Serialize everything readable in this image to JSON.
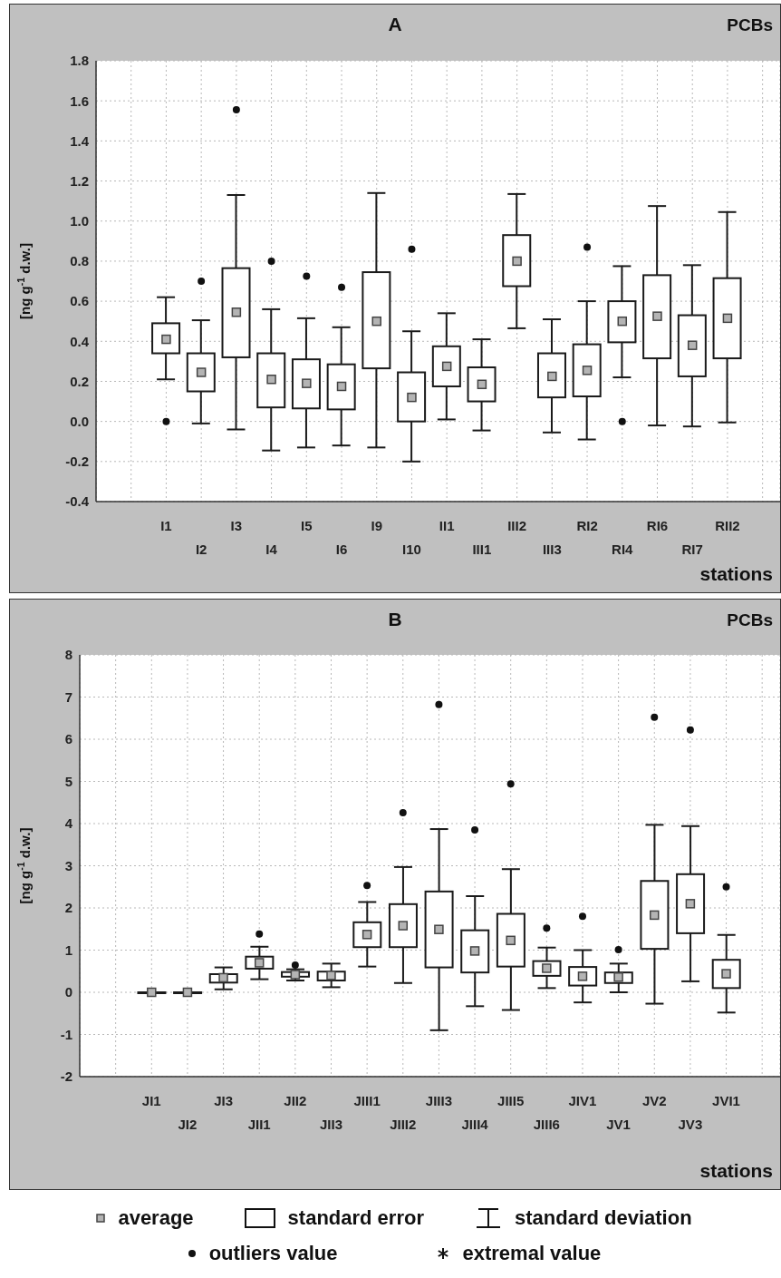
{
  "chart_data": [
    {
      "type": "box",
      "title": "A",
      "subtitle": "PCBs",
      "xlabel": "stations",
      "ylabel": "[ng g$^{-1}$ d.w.]",
      "categories": [
        "I1",
        "I2",
        "I3",
        "I4",
        "I5",
        "I6",
        "I9",
        "I10",
        "II1",
        "III1",
        "III2",
        "III3",
        "RI2",
        "RI4",
        "RI6",
        "RI7",
        "RII2"
      ],
      "boxes": [
        {
          "low": 0.21,
          "q1": 0.34,
          "mean": 0.41,
          "q3": 0.49,
          "high": 0.62,
          "outliers": [
            0.0
          ]
        },
        {
          "low": -0.01,
          "q1": 0.15,
          "mean": 0.245,
          "q3": 0.34,
          "high": 0.505,
          "outliers": [
            0.7
          ]
        },
        {
          "low": -0.04,
          "q1": 0.32,
          "mean": 0.545,
          "q3": 0.765,
          "high": 1.13,
          "outliers": [
            1.555
          ]
        },
        {
          "low": -0.145,
          "q1": 0.07,
          "mean": 0.21,
          "q3": 0.34,
          "high": 0.56,
          "outliers": [
            0.8
          ]
        },
        {
          "low": -0.13,
          "q1": 0.065,
          "mean": 0.19,
          "q3": 0.31,
          "high": 0.515,
          "outliers": [
            0.725
          ]
        },
        {
          "low": -0.12,
          "q1": 0.06,
          "mean": 0.175,
          "q3": 0.285,
          "high": 0.47,
          "outliers": [
            0.67
          ]
        },
        {
          "low": -0.13,
          "q1": 0.265,
          "mean": 0.5,
          "q3": 0.745,
          "high": 1.14
        },
        {
          "low": -0.2,
          "q1": 0.0,
          "mean": 0.12,
          "q3": 0.245,
          "high": 0.45,
          "outliers": [
            0.86
          ]
        },
        {
          "low": 0.01,
          "q1": 0.175,
          "mean": 0.275,
          "q3": 0.375,
          "high": 0.54
        },
        {
          "low": -0.045,
          "q1": 0.1,
          "mean": 0.185,
          "q3": 0.27,
          "high": 0.41
        },
        {
          "low": 0.465,
          "q1": 0.675,
          "mean": 0.8,
          "q3": 0.93,
          "high": 1.135
        },
        {
          "low": -0.055,
          "q1": 0.12,
          "mean": 0.225,
          "q3": 0.34,
          "high": 0.51
        },
        {
          "low": -0.09,
          "q1": 0.125,
          "mean": 0.255,
          "q3": 0.385,
          "high": 0.6,
          "outliers": [
            0.87
          ]
        },
        {
          "low": 0.22,
          "q1": 0.395,
          "mean": 0.5,
          "q3": 0.6,
          "high": 0.775,
          "outliers": [
            0.0
          ]
        },
        {
          "low": -0.02,
          "q1": 0.315,
          "mean": 0.525,
          "q3": 0.73,
          "high": 1.075
        },
        {
          "low": -0.025,
          "q1": 0.225,
          "mean": 0.38,
          "q3": 0.53,
          "high": 0.78
        },
        {
          "low": -0.005,
          "q1": 0.315,
          "mean": 0.515,
          "q3": 0.715,
          "high": 1.045
        }
      ],
      "ylim": [
        -0.4,
        1.8
      ],
      "yticks": [
        -0.4,
        -0.2,
        {
          "value": 0,
          "label": "0.0"
        },
        0.2,
        0.4,
        0.6,
        0.8,
        {
          "value": 1,
          "label": "1.0"
        },
        1.2,
        1.4,
        1.6,
        1.8
      ],
      "grid": true
    },
    {
      "type": "box",
      "title": "B",
      "subtitle": "PCBs",
      "xlabel": "stations",
      "ylabel": "[ng g$^{-1}$ d.w.]",
      "categories": [
        "JI1",
        "JI2",
        "JI3",
        "JII1",
        "JII2",
        "JII3",
        "JIII1",
        "JIII2",
        "JIII3",
        "JIII4",
        "JIII5",
        "JIII6",
        "JIV1",
        "JV1",
        "JV2",
        "JV3",
        "JVI1"
      ],
      "boxes": [
        {
          "low": 0,
          "q1": 0,
          "mean": 0,
          "q3": 0,
          "high": 0
        },
        {
          "low": 0,
          "q1": 0,
          "mean": 0,
          "q3": 0,
          "high": 0
        },
        {
          "low": 0.07,
          "q1": 0.23,
          "mean": 0.345,
          "q3": 0.43,
          "high": 0.59
        },
        {
          "low": 0.31,
          "q1": 0.56,
          "mean": 0.7,
          "q3": 0.845,
          "high": 1.08,
          "outliers": [
            1.38
          ]
        },
        {
          "low": 0.28,
          "q1": 0.37,
          "mean": 0.42,
          "q3": 0.48,
          "high": 0.545,
          "outliers": [
            0.645
          ]
        },
        {
          "low": 0.12,
          "q1": 0.28,
          "mean": 0.4,
          "q3": 0.49,
          "high": 0.68
        },
        {
          "low": 0.61,
          "q1": 1.07,
          "mean": 1.37,
          "q3": 1.66,
          "high": 2.14,
          "outliers": [
            2.53
          ]
        },
        {
          "low": 0.22,
          "q1": 1.07,
          "mean": 1.58,
          "q3": 2.09,
          "high": 2.97,
          "outliers": [
            4.26
          ]
        },
        {
          "low": -0.9,
          "q1": 0.59,
          "mean": 1.49,
          "q3": 2.39,
          "high": 3.87,
          "outliers": [
            6.82
          ]
        },
        {
          "low": -0.33,
          "q1": 0.47,
          "mean": 0.98,
          "q3": 1.47,
          "high": 2.28,
          "outliers": [
            3.85
          ]
        },
        {
          "low": -0.42,
          "q1": 0.61,
          "mean": 1.23,
          "q3": 1.86,
          "high": 2.92,
          "outliers": [
            4.94
          ]
        },
        {
          "low": 0.1,
          "q1": 0.39,
          "mean": 0.57,
          "q3": 0.74,
          "high": 1.06,
          "outliers": [
            1.52
          ]
        },
        {
          "low": -0.24,
          "q1": 0.16,
          "mean": 0.38,
          "q3": 0.6,
          "high": 1.0,
          "outliers": [
            1.8
          ]
        },
        {
          "low": 0.0,
          "q1": 0.22,
          "mean": 0.36,
          "q3": 0.47,
          "high": 0.68,
          "outliers": [
            1.01
          ]
        },
        {
          "low": -0.27,
          "q1": 1.03,
          "mean": 1.83,
          "q3": 2.64,
          "high": 3.97,
          "outliers": [
            6.52
          ]
        },
        {
          "low": 0.26,
          "q1": 1.4,
          "mean": 2.1,
          "q3": 2.8,
          "high": 3.94,
          "outliers": [
            6.22
          ]
        },
        {
          "low": -0.48,
          "q1": 0.1,
          "mean": 0.44,
          "q3": 0.77,
          "high": 1.36,
          "outliers": [
            2.5
          ]
        }
      ],
      "ylim": [
        -2,
        8
      ],
      "yticks": [
        -2,
        -1,
        0,
        1,
        2,
        3,
        4,
        5,
        6,
        7,
        8
      ],
      "grid": true,
      "annotations": [
        "average",
        "standard error",
        "standard deviation",
        "outliers value",
        "extremal value"
      ]
    }
  ]
}
